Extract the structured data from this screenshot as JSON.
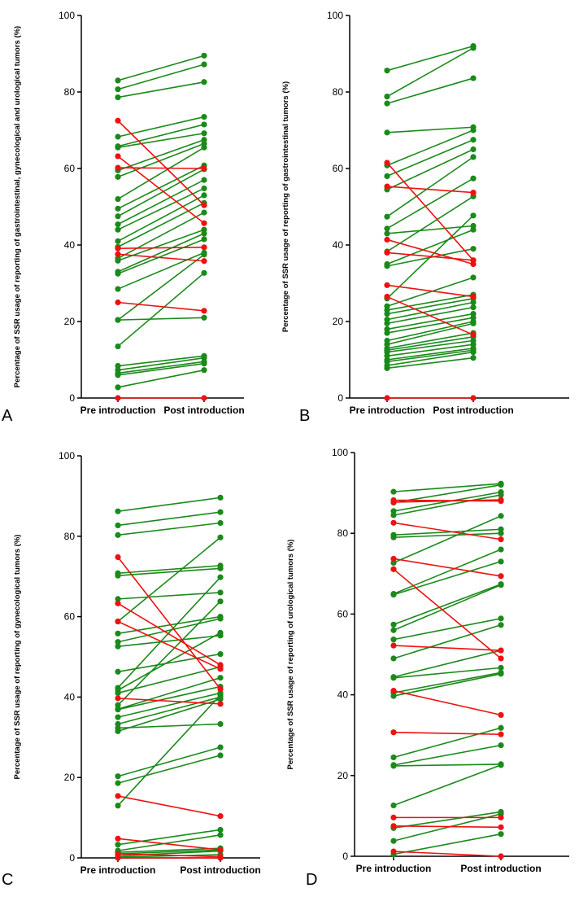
{
  "colors": {
    "improved": "#1a8a1a",
    "declined": "#ee1111"
  },
  "chart_data": [
    {
      "type": "line",
      "panel": "A",
      "ylabel": "Percentage of SSR usage of reporting of gastrointestinal, gynecological and urological tumors (%)",
      "categories": [
        "Pre introduction",
        "Post introduction"
      ],
      "ylim": [
        0,
        100
      ],
      "yticks": [
        "0",
        "20",
        "40",
        "60",
        "80",
        "100"
      ],
      "pairs": [
        [
          83.0,
          89.5
        ],
        [
          80.7,
          87.2
        ],
        [
          78.6,
          82.6
        ],
        [
          68.3,
          73.5
        ],
        [
          65.8,
          71.5
        ],
        [
          65.5,
          69.2
        ],
        [
          59.5,
          67.5
        ],
        [
          57.8,
          66.5
        ],
        [
          52.0,
          65.5
        ],
        [
          49.5,
          60.8
        ],
        [
          47.5,
          59.8
        ],
        [
          45.4,
          57.0
        ],
        [
          44.0,
          54.8
        ],
        [
          41.0,
          53.0
        ],
        [
          39.5,
          51.0
        ],
        [
          36.5,
          48.5
        ],
        [
          35.9,
          44.0
        ],
        [
          33.0,
          43.0
        ],
        [
          32.5,
          41.5
        ],
        [
          28.5,
          38.0
        ],
        [
          20.4,
          37.5
        ],
        [
          20.4,
          21.0
        ],
        [
          13.5,
          32.7
        ],
        [
          8.4,
          11.0
        ],
        [
          7.3,
          10.5
        ],
        [
          6.5,
          9.5
        ],
        [
          6.0,
          9.0
        ],
        [
          2.8,
          7.3
        ],
        [
          72.5,
          50.4
        ],
        [
          63.2,
          45.7
        ],
        [
          60.2,
          60.0
        ],
        [
          39.1,
          39.4
        ],
        [
          37.6,
          35.8
        ],
        [
          25.0,
          22.8
        ],
        [
          0.0,
          0.0
        ]
      ],
      "declined_count": 7
    },
    {
      "type": "line",
      "panel": "B",
      "ylabel": "Percentage of SSR usage of reporting of gastrointestinal tumors (%)",
      "categories": [
        "Pre introduction",
        "Post introduction"
      ],
      "ylim": [
        0,
        100
      ],
      "yticks": [
        "0",
        "20",
        "40",
        "60",
        "80",
        "100"
      ],
      "pairs": [
        [
          85.6,
          92.0
        ],
        [
          78.8,
          91.5
        ],
        [
          77.0,
          83.6
        ],
        [
          69.4,
          70.8
        ],
        [
          60.8,
          70.0
        ],
        [
          58.0,
          67.5
        ],
        [
          54.5,
          65.0
        ],
        [
          47.4,
          63.0
        ],
        [
          44.3,
          57.4
        ],
        [
          43.0,
          45.0
        ],
        [
          38.3,
          52.7
        ],
        [
          35.0,
          44.0
        ],
        [
          34.5,
          39.0
        ],
        [
          26.0,
          47.7
        ],
        [
          24.0,
          31.5
        ],
        [
          23.0,
          27.0
        ],
        [
          22.0,
          26.0
        ],
        [
          20.5,
          25.0
        ],
        [
          19.5,
          23.7
        ],
        [
          18.0,
          22.0
        ],
        [
          17.0,
          21.0
        ],
        [
          15.0,
          20.0
        ],
        [
          14.0,
          19.5
        ],
        [
          13.0,
          17.0
        ],
        [
          12.5,
          16.0
        ],
        [
          12.0,
          15.0
        ],
        [
          11.0,
          14.0
        ],
        [
          10.0,
          13.0
        ],
        [
          9.5,
          12.5
        ],
        [
          8.5,
          12.0
        ],
        [
          7.8,
          10.5
        ],
        [
          61.5,
          36.0
        ],
        [
          55.3,
          53.7
        ],
        [
          41.4,
          35.0
        ],
        [
          38.0,
          36.0
        ],
        [
          29.5,
          26.5
        ],
        [
          26.5,
          16.5
        ],
        [
          0.0,
          0.0
        ]
      ],
      "declined_count": 7
    },
    {
      "type": "line",
      "panel": "C",
      "ylabel": "Percentage of SSR usage of reporting of gynecological tumors (%)",
      "categories": [
        "Pre introduction",
        "Post introduction"
      ],
      "ylim": [
        0,
        100
      ],
      "yticks": [
        "0",
        "20",
        "40",
        "60",
        "80",
        "100"
      ],
      "pairs": [
        [
          86.2,
          89.6
        ],
        [
          82.7,
          86.0
        ],
        [
          80.3,
          83.3
        ],
        [
          70.8,
          72.7
        ],
        [
          70.2,
          72.0
        ],
        [
          64.4,
          66.0
        ],
        [
          58.8,
          79.7
        ],
        [
          55.8,
          60.0
        ],
        [
          53.7,
          59.5
        ],
        [
          52.6,
          55.3
        ],
        [
          46.3,
          50.7
        ],
        [
          42.3,
          69.8
        ],
        [
          41.7,
          56.0
        ],
        [
          41.0,
          47.5
        ],
        [
          38.0,
          63.8
        ],
        [
          37.0,
          44.8
        ],
        [
          36.9,
          42.6
        ],
        [
          35.0,
          41.0
        ],
        [
          33.3,
          40.0
        ],
        [
          32.3,
          33.3
        ],
        [
          31.5,
          39.5
        ],
        [
          20.3,
          27.5
        ],
        [
          18.6,
          25.5
        ],
        [
          13.0,
          40.5
        ],
        [
          3.3,
          7.0
        ],
        [
          1.8,
          5.7
        ],
        [
          1.4,
          2.4
        ],
        [
          1.0,
          2.0
        ],
        [
          0.5,
          1.7
        ],
        [
          0.2,
          0.8
        ],
        [
          74.8,
          42.0
        ],
        [
          63.3,
          48.0
        ],
        [
          58.8,
          47.0
        ],
        [
          39.7,
          38.3
        ],
        [
          15.4,
          10.4
        ],
        [
          4.8,
          2.0
        ],
        [
          1.0,
          0.3
        ],
        [
          0.0,
          0.0
        ]
      ],
      "declined_count": 8
    },
    {
      "type": "line",
      "panel": "D",
      "ylabel": "Percentage of SSR usage of reporting of urological tumors (%)",
      "categories": [
        "Pre introduction",
        "Post introduction"
      ],
      "ylim": [
        0,
        100
      ],
      "yticks": [
        "0",
        "20",
        "40",
        "60",
        "80",
        "100"
      ],
      "pairs": [
        [
          90.3,
          92.3
        ],
        [
          87.6,
          92.0
        ],
        [
          85.5,
          90.2
        ],
        [
          84.5,
          89.5
        ],
        [
          79.6,
          81.0
        ],
        [
          79.0,
          80.0
        ],
        [
          72.7,
          84.3
        ],
        [
          65.0,
          76.0
        ],
        [
          64.8,
          73.0
        ],
        [
          57.4,
          67.4
        ],
        [
          56.0,
          67.2
        ],
        [
          53.7,
          58.9
        ],
        [
          49.0,
          57.3
        ],
        [
          44.4,
          51.0
        ],
        [
          44.2,
          46.7
        ],
        [
          40.5,
          45.5
        ],
        [
          39.7,
          45.2
        ],
        [
          24.5,
          31.8
        ],
        [
          22.6,
          27.5
        ],
        [
          22.4,
          22.8
        ],
        [
          12.6,
          22.6
        ],
        [
          7.0,
          11.0
        ],
        [
          3.8,
          10.5
        ],
        [
          0.5,
          5.5
        ],
        [
          88.2,
          88.0
        ],
        [
          87.7,
          88.3
        ],
        [
          82.6,
          78.5
        ],
        [
          73.7,
          69.4
        ],
        [
          71.1,
          49.0
        ],
        [
          52.2,
          51.0
        ],
        [
          41.0,
          35.0
        ],
        [
          30.7,
          30.2
        ],
        [
          9.6,
          9.6
        ],
        [
          7.5,
          7.2
        ],
        [
          1.2,
          0.0
        ]
      ],
      "declined_count": 11
    }
  ]
}
